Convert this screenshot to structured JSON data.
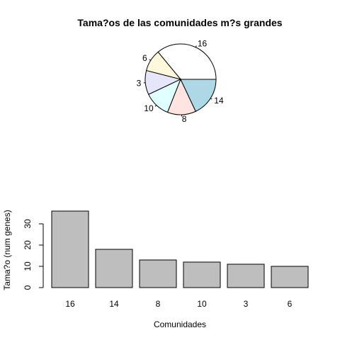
{
  "charts": [
    {
      "type": "pie",
      "title": "Tama?os de las comunidades m?s grandes",
      "categories": [
        "16",
        "6",
        "3",
        "10",
        "8",
        "14"
      ],
      "values": [
        36,
        10,
        11,
        12,
        13,
        18
      ],
      "colors": [
        "#FFFFFF",
        "#FFF8DC",
        "#E6E6FA",
        "#E0FFFF",
        "#FFE4E1",
        "#ADD8E6"
      ]
    },
    {
      "type": "bar",
      "categories": [
        "16",
        "14",
        "8",
        "10",
        "3",
        "6"
      ],
      "values": [
        36,
        18,
        13,
        12,
        11,
        10
      ],
      "ylim": [
        0,
        36
      ],
      "yticks": [
        0,
        10,
        20,
        30
      ],
      "xlabel": "Comunidades",
      "ylabel": "Tama?o (num genes)",
      "bar_color": "#BEBEBE"
    }
  ]
}
